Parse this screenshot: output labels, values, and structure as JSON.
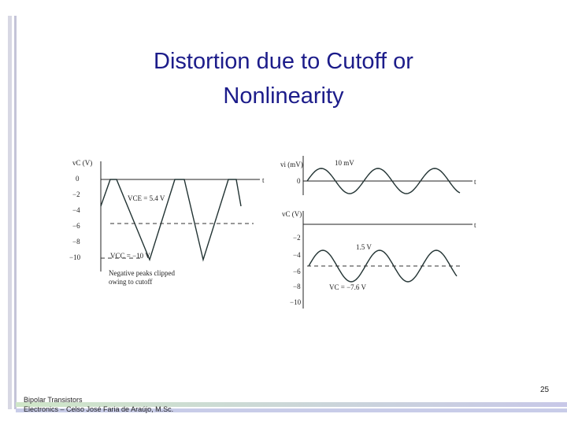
{
  "header": {
    "title": "Distortion due to Cutoff or Nonlinearity"
  },
  "figures": [
    {
      "axis_label": "vC (V)",
      "ticks": [
        "0",
        "−2",
        "−4",
        "−6",
        "−8",
        "−10"
      ],
      "time_label": "t",
      "annotations": [
        "VCE = 5.4 V",
        "VCC = −10 V",
        "Negative peaks clipped",
        "owing to cutoff"
      ]
    },
    {
      "input_axis_label": "vi (mV)",
      "input_zero": "0",
      "input_amplitude": "10 mV",
      "input_time_label": "t",
      "axis_label": "vC (V)",
      "ticks": [
        "−2",
        "−4",
        "−6",
        "−8",
        "−10"
      ],
      "time_label": "t",
      "annotations": [
        "1.5 V",
        "VC = −7.6 V"
      ]
    }
  ],
  "footer": {
    "lines": [
      "Bipolar Transistors",
      "Electronics – Celso José Faria de Araújo, M.Sc."
    ],
    "page_number": "25"
  }
}
